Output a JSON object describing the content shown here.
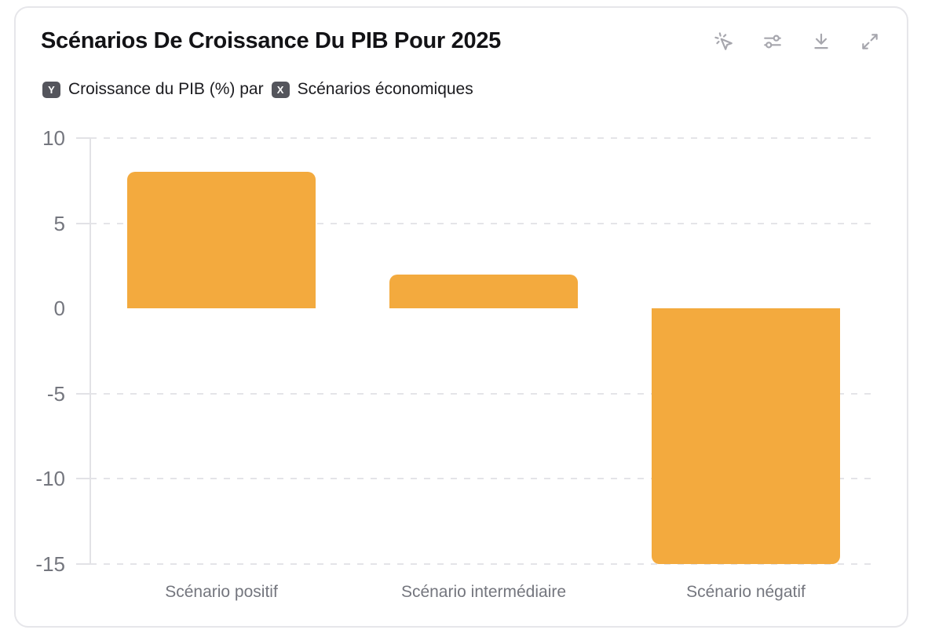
{
  "card": {
    "title": "Scénarios De Croissance Du PIB Pour 2025",
    "subtitle": {
      "y_badge": "Y",
      "y_text": "Croissance du PIB (%) par",
      "x_badge": "X",
      "x_text": "Scénarios économiques"
    },
    "toolbar": {
      "icons": [
        "pointer-click-icon",
        "sliders-icon",
        "download-icon",
        "expand-icon"
      ]
    }
  },
  "chart_data": {
    "type": "bar",
    "title": "Scénarios De Croissance Du PIB Pour 2025",
    "categories": [
      "Scénario positif",
      "Scénario intermédiaire",
      "Scénario négatif"
    ],
    "values": [
      8,
      2,
      -15
    ],
    "ylabel": "Croissance du PIB (%)",
    "xlabel": "Scénarios économiques",
    "ylim": [
      -15,
      10
    ],
    "yticks": [
      10,
      5,
      0,
      -5,
      -10,
      -15
    ],
    "gridline_ticks": [
      10,
      5,
      -5,
      -10,
      -15
    ],
    "bar_color": "#F3AA3E",
    "grid": true,
    "legend": false,
    "gridline_style": "dashed"
  }
}
